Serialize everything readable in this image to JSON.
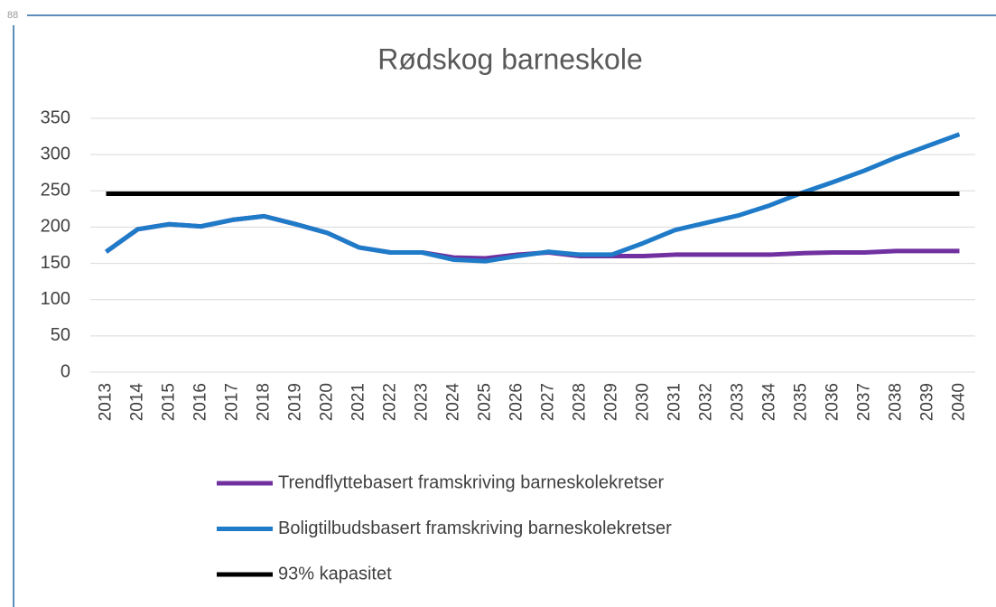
{
  "corner_label": "88",
  "chart_data": {
    "type": "line",
    "title": "Rødskog barneskole",
    "categories": [
      "2013",
      "2014",
      "2015",
      "2016",
      "2017",
      "2018",
      "2019",
      "2020",
      "2021",
      "2022",
      "2023",
      "2024",
      "2025",
      "2026",
      "2027",
      "2028",
      "2029",
      "2030",
      "2031",
      "2032",
      "2033",
      "2034",
      "2035",
      "2036",
      "2037",
      "2038",
      "2039",
      "2040"
    ],
    "series": [
      {
        "name": "Trendflyttebasert framskriving barneskolekretser",
        "color": "#7030a0",
        "values": [
          166,
          197,
          204,
          201,
          210,
          215,
          204,
          192,
          172,
          165,
          165,
          158,
          157,
          162,
          165,
          160,
          160,
          160,
          162,
          162,
          162,
          162,
          164,
          165,
          165,
          167,
          167,
          167
        ]
      },
      {
        "name": "Boligtilbudsbasert framskriving barneskolekretser",
        "color": "#1f7bc8",
        "values": [
          166,
          197,
          204,
          201,
          210,
          215,
          204,
          192,
          172,
          165,
          165,
          155,
          153,
          160,
          166,
          162,
          162,
          178,
          196,
          206,
          216,
          230,
          247,
          262,
          278,
          296,
          312,
          328
        ]
      },
      {
        "name": "93% kapasitet",
        "color": "#000000",
        "values": [
          246,
          246,
          246,
          246,
          246,
          246,
          246,
          246,
          246,
          246,
          246,
          246,
          246,
          246,
          246,
          246,
          246,
          246,
          246,
          246,
          246,
          246,
          246,
          246,
          246,
          246,
          246,
          246
        ]
      }
    ],
    "ylim": [
      0,
      350
    ],
    "yticks": [
      0,
      50,
      100,
      150,
      200,
      250,
      300,
      350
    ],
    "grid": true,
    "legend": "bottom"
  }
}
